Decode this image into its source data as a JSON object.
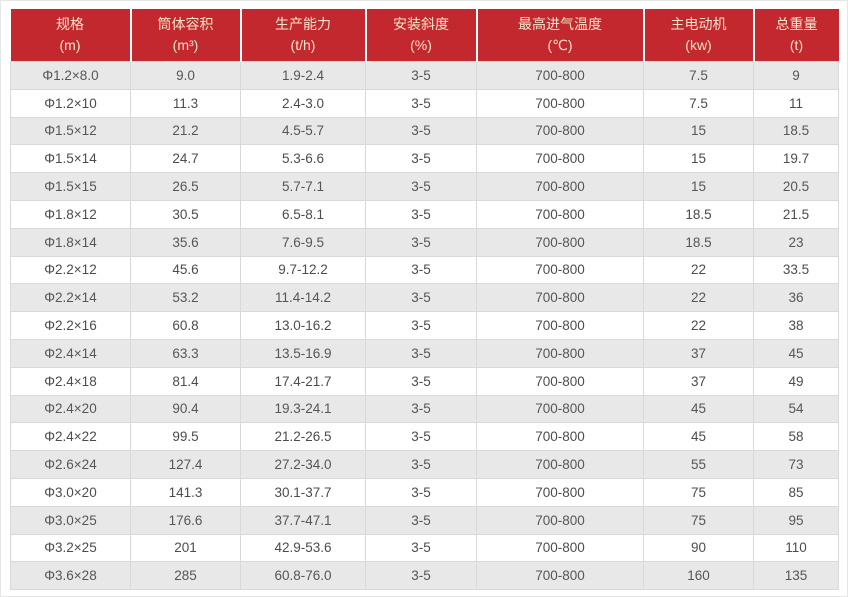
{
  "colors": {
    "header_background": "#c2282d",
    "header_text": "#f8e4cc",
    "stripe_row_background": "#e8e8e8",
    "plain_row_background": "#ffffff",
    "cell_border": "#d9d9d9",
    "cell_text": "#4c4c4c"
  },
  "chart_data": {
    "type": "table",
    "columns": [
      {
        "name": "规格",
        "unit": "(m)"
      },
      {
        "name": "筒体容积",
        "unit": "(m³)"
      },
      {
        "name": "生产能力",
        "unit": "(t/h)"
      },
      {
        "name": "安装斜度",
        "unit": "(%)"
      },
      {
        "name": "最高进气温度",
        "unit": "(℃)"
      },
      {
        "name": "主电动机",
        "unit": "(kw)"
      },
      {
        "name": "总重量",
        "unit": "(t)"
      }
    ],
    "rows": [
      [
        "Φ1.2×8.0",
        "9.0",
        "1.9-2.4",
        "3-5",
        "700-800",
        "7.5",
        "9"
      ],
      [
        "Φ1.2×10",
        "11.3",
        "2.4-3.0",
        "3-5",
        "700-800",
        "7.5",
        "11"
      ],
      [
        "Φ1.5×12",
        "21.2",
        "4.5-5.7",
        "3-5",
        "700-800",
        "15",
        "18.5"
      ],
      [
        "Φ1.5×14",
        "24.7",
        "5.3-6.6",
        "3-5",
        "700-800",
        "15",
        "19.7"
      ],
      [
        "Φ1.5×15",
        "26.5",
        "5.7-7.1",
        "3-5",
        "700-800",
        "15",
        "20.5"
      ],
      [
        "Φ1.8×12",
        "30.5",
        "6.5-8.1",
        "3-5",
        "700-800",
        "18.5",
        "21.5"
      ],
      [
        "Φ1.8×14",
        "35.6",
        "7.6-9.5",
        "3-5",
        "700-800",
        "18.5",
        "23"
      ],
      [
        "Φ2.2×12",
        "45.6",
        "9.7-12.2",
        "3-5",
        "700-800",
        "22",
        "33.5"
      ],
      [
        "Φ2.2×14",
        "53.2",
        "11.4-14.2",
        "3-5",
        "700-800",
        "22",
        "36"
      ],
      [
        "Φ2.2×16",
        "60.8",
        "13.0-16.2",
        "3-5",
        "700-800",
        "22",
        "38"
      ],
      [
        "Φ2.4×14",
        "63.3",
        "13.5-16.9",
        "3-5",
        "700-800",
        "37",
        "45"
      ],
      [
        "Φ2.4×18",
        "81.4",
        "17.4-21.7",
        "3-5",
        "700-800",
        "37",
        "49"
      ],
      [
        "Φ2.4×20",
        "90.4",
        "19.3-24.1",
        "3-5",
        "700-800",
        "45",
        "54"
      ],
      [
        "Φ2.4×22",
        "99.5",
        "21.2-26.5",
        "3-5",
        "700-800",
        "45",
        "58"
      ],
      [
        "Φ2.6×24",
        "127.4",
        "27.2-34.0",
        "3-5",
        "700-800",
        "55",
        "73"
      ],
      [
        "Φ3.0×20",
        "141.3",
        "30.1-37.7",
        "3-5",
        "700-800",
        "75",
        "85"
      ],
      [
        "Φ3.0×25",
        "176.6",
        "37.7-47.1",
        "3-5",
        "700-800",
        "75",
        "95"
      ],
      [
        "Φ3.2×25",
        "201",
        "42.9-53.6",
        "3-5",
        "700-800",
        "90",
        "110"
      ],
      [
        "Φ3.6×28",
        "285",
        "60.8-76.0",
        "3-5",
        "700-800",
        "160",
        "135"
      ]
    ]
  }
}
